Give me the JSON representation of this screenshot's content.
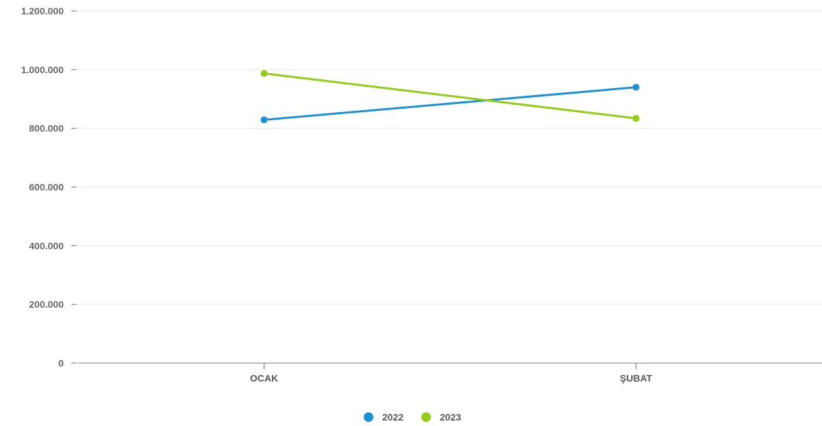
{
  "chart_data": {
    "type": "line",
    "categories": [
      "OCAK",
      "ŞUBAT"
    ],
    "series": [
      {
        "name": "2022",
        "color": "#1a90d6",
        "values": [
          829000,
          940000
        ]
      },
      {
        "name": "2023",
        "color": "#93cd16",
        "values": [
          987000,
          834000
        ]
      }
    ],
    "ylim": [
      0,
      1200000
    ],
    "yticks": [
      0,
      200000,
      400000,
      600000,
      800000,
      1000000,
      1200000
    ],
    "ytick_labels": [
      "0",
      "200.000",
      "400.000",
      "600.000",
      "800.000",
      "1.000.000",
      "1.200.000"
    ],
    "grid": true,
    "legend": "bottom-center"
  }
}
